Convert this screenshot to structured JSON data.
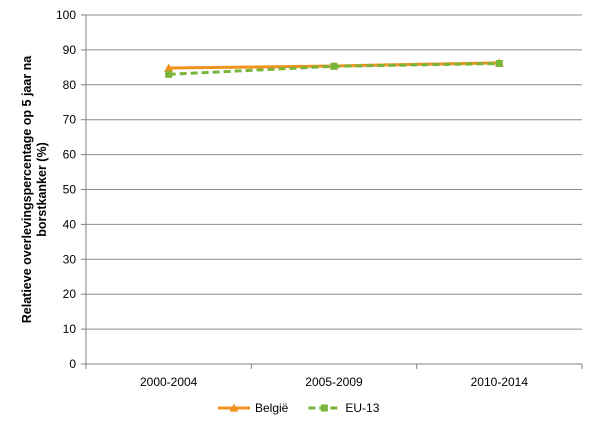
{
  "chart_data": {
    "type": "line",
    "categories": [
      "2000-2004",
      "2005-2009",
      "2010-2014"
    ],
    "series": [
      {
        "name": "België",
        "values": [
          84.8,
          85.4,
          86.3
        ],
        "color": "#f0921e",
        "style": "solid",
        "marker": "triangle"
      },
      {
        "name": "EU-13",
        "values": [
          83.0,
          85.3,
          86.1
        ],
        "color": "#7ab53b",
        "style": "dashed",
        "marker": "square"
      }
    ],
    "ylabel_lines": [
      "Relatieve overlevingspercentage op 5 jaar na",
      "borstkanker (%)"
    ],
    "xlabel": "",
    "ylim": [
      0,
      100
    ],
    "yticks": [
      0,
      10,
      20,
      30,
      40,
      50,
      60,
      70,
      80,
      90,
      100
    ],
    "grid": "horizontal",
    "legend_position": "bottom"
  }
}
